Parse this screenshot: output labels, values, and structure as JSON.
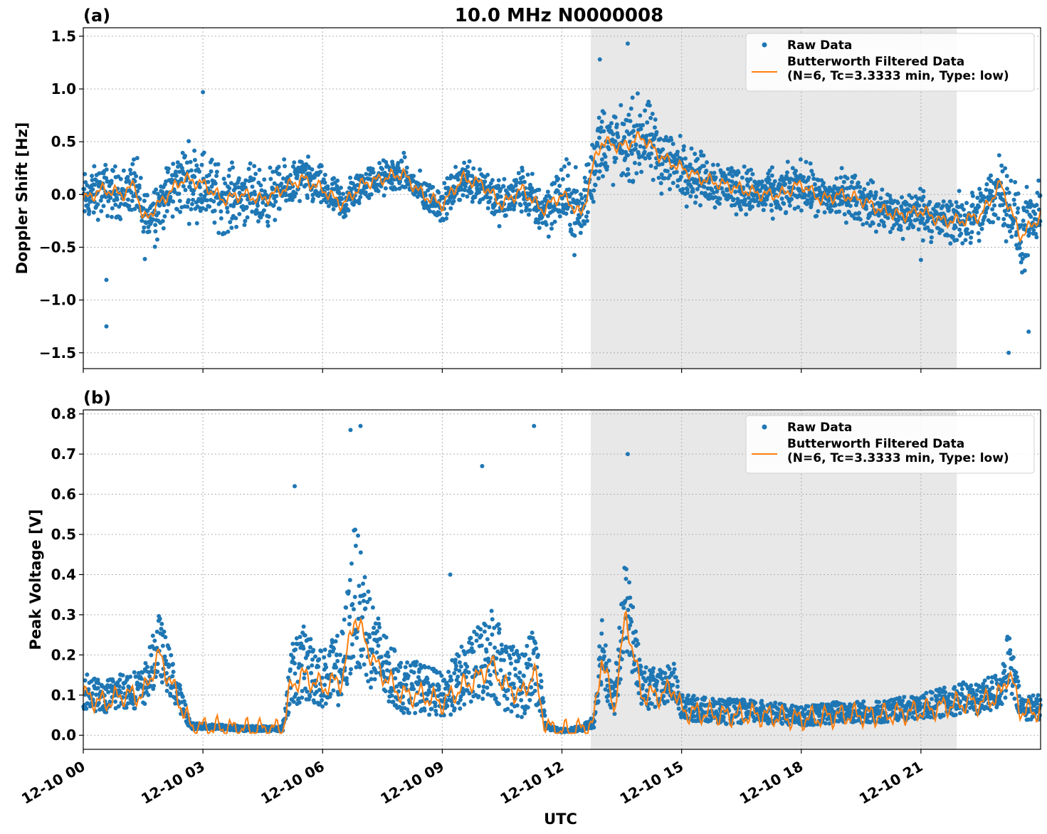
{
  "figure": {
    "title": "10.0 MHz N0000008",
    "xlabel": "UTC"
  },
  "chart_data": [
    {
      "type": "scatter",
      "panel_label": "(a)",
      "title": "10.0 MHz N0000008",
      "xlabel": "",
      "ylabel": "Doppler Shift [Hz]",
      "xlim_hours": [
        0,
        24
      ],
      "ylim": [
        -1.65,
        1.58
      ],
      "yticks": [
        -1.5,
        -1.0,
        -0.5,
        0.0,
        0.5,
        1.0,
        1.5
      ],
      "ytick_labels": [
        "−1.5",
        "−1.0",
        "−0.5",
        "0.0",
        "0.5",
        "1.0",
        "1.5"
      ],
      "grid": true,
      "legend_position": "top-right",
      "shaded_region_hours": [
        12.72,
        21.9
      ],
      "series": [
        {
          "name": "Raw Data",
          "kind": "scatter",
          "color": "#1f77b4",
          "x_hours": [
            0,
            0.5,
            1,
            1.3,
            1.5,
            2,
            2.5,
            3,
            3.5,
            4,
            4.5,
            5,
            5.5,
            6,
            6.5,
            7,
            7.5,
            8,
            8.5,
            9,
            9.5,
            10,
            10.5,
            11,
            11.5,
            12,
            12.5,
            12.8,
            13,
            13.5,
            14,
            14.5,
            15,
            15.5,
            16,
            16.5,
            17,
            17.5,
            18,
            18.5,
            19,
            19.5,
            20,
            20.5,
            21,
            21.5,
            22,
            22.5,
            23,
            23.5,
            24
          ],
          "values": [
            -0.05,
            0.05,
            0.0,
            0.1,
            -0.25,
            -0.05,
            0.15,
            0.1,
            -0.05,
            0.0,
            -0.05,
            0.05,
            0.15,
            0.05,
            -0.1,
            0.1,
            0.15,
            0.2,
            0.0,
            -0.1,
            0.15,
            0.1,
            -0.1,
            0.05,
            -0.15,
            0.0,
            -0.2,
            0.3,
            0.5,
            0.45,
            0.55,
            0.35,
            0.25,
            0.15,
            0.1,
            0.05,
            0.0,
            0.0,
            0.1,
            -0.05,
            0.0,
            -0.05,
            -0.15,
            -0.2,
            -0.15,
            -0.25,
            -0.25,
            -0.2,
            0.1,
            -0.4,
            -0.2
          ],
          "spread": [
            0.22,
            0.22,
            0.22,
            0.25,
            0.3,
            0.25,
            0.3,
            0.3,
            0.28,
            0.25,
            0.25,
            0.2,
            0.2,
            0.18,
            0.18,
            0.15,
            0.15,
            0.15,
            0.15,
            0.15,
            0.18,
            0.2,
            0.2,
            0.2,
            0.22,
            0.28,
            0.35,
            0.35,
            0.35,
            0.3,
            0.35,
            0.3,
            0.25,
            0.22,
            0.22,
            0.2,
            0.2,
            0.2,
            0.2,
            0.2,
            0.2,
            0.2,
            0.2,
            0.2,
            0.2,
            0.2,
            0.22,
            0.25,
            0.3,
            0.35,
            0.25
          ],
          "outliers": [
            [
              0.58,
              -0.81
            ],
            [
              0.58,
              -1.25
            ],
            [
              3.0,
              0.97
            ],
            [
              12.95,
              1.28
            ],
            [
              13.65,
              1.43
            ],
            [
              23.2,
              -1.5
            ],
            [
              23.7,
              -1.3
            ],
            [
              21.0,
              -0.62
            ]
          ]
        },
        {
          "name": "Butterworth Filtered Data\n(N=6, Tc=3.3333 min, Type: low)",
          "kind": "line",
          "color": "#ff7f0e",
          "x_hours": [
            0,
            0.5,
            1,
            1.3,
            1.5,
            2,
            2.5,
            3,
            3.5,
            4,
            4.5,
            5,
            5.5,
            6,
            6.5,
            7,
            7.5,
            8,
            8.5,
            9,
            9.5,
            10,
            10.5,
            11,
            11.5,
            12,
            12.5,
            12.8,
            13,
            13.5,
            14,
            14.5,
            15,
            15.5,
            16,
            16.5,
            17,
            17.5,
            18,
            18.5,
            19,
            19.5,
            20,
            20.5,
            21,
            21.5,
            22,
            22.5,
            23,
            23.5,
            24
          ],
          "values": [
            -0.05,
            0.05,
            0.0,
            0.1,
            -0.25,
            -0.05,
            0.15,
            0.1,
            -0.05,
            0.0,
            -0.05,
            0.05,
            0.15,
            0.05,
            -0.1,
            0.1,
            0.15,
            0.2,
            0.0,
            -0.1,
            0.15,
            0.1,
            -0.1,
            0.05,
            -0.15,
            0.0,
            -0.2,
            0.3,
            0.5,
            0.45,
            0.55,
            0.35,
            0.25,
            0.15,
            0.1,
            0.05,
            0.0,
            0.0,
            0.1,
            -0.05,
            0.0,
            -0.05,
            -0.15,
            -0.2,
            -0.15,
            -0.25,
            -0.25,
            -0.2,
            0.1,
            -0.4,
            -0.2
          ]
        }
      ]
    },
    {
      "type": "scatter",
      "panel_label": "(b)",
      "xlabel": "UTC",
      "ylabel": "Peak Voltage [V]",
      "xlim_hours": [
        0,
        24
      ],
      "ylim": [
        -0.035,
        0.81
      ],
      "yticks": [
        0.0,
        0.1,
        0.2,
        0.3,
        0.4,
        0.5,
        0.6,
        0.7,
        0.8
      ],
      "ytick_labels": [
        "0.0",
        "0.1",
        "0.2",
        "0.3",
        "0.4",
        "0.5",
        "0.6",
        "0.7",
        "0.8"
      ],
      "xticks_hours": [
        0,
        3,
        6,
        9,
        12,
        15,
        18,
        21
      ],
      "xtick_labels": [
        "12-10 00",
        "12-10 03",
        "12-10 06",
        "12-10 09",
        "12-10 12",
        "12-10 15",
        "12-10 18",
        "12-10 21"
      ],
      "grid": true,
      "legend_position": "top-right",
      "shaded_region_hours": [
        12.72,
        21.9
      ],
      "series": [
        {
          "name": "Raw Data",
          "kind": "scatter",
          "color": "#1f77b4",
          "x_hours": [
            0,
            0.5,
            1,
            1.5,
            1.9,
            2.2,
            2.7,
            3,
            4,
            5,
            5.2,
            5.5,
            6,
            6.5,
            6.8,
            7,
            7.3,
            7.6,
            8,
            8.5,
            9,
            9.5,
            10,
            10.2,
            10.6,
            11,
            11.3,
            11.6,
            12,
            12.5,
            12.8,
            13,
            13.3,
            13.6,
            14,
            14.5,
            14.8,
            15,
            16,
            17,
            18,
            19,
            20,
            21,
            21.5,
            22,
            22.5,
            23,
            23.2,
            23.5,
            24
          ],
          "values": [
            0.1,
            0.08,
            0.1,
            0.1,
            0.2,
            0.13,
            0.02,
            0.02,
            0.015,
            0.015,
            0.12,
            0.15,
            0.12,
            0.14,
            0.3,
            0.25,
            0.18,
            0.14,
            0.1,
            0.1,
            0.08,
            0.12,
            0.15,
            0.18,
            0.12,
            0.1,
            0.16,
            0.02,
            0.01,
            0.015,
            0.03,
            0.2,
            0.06,
            0.3,
            0.1,
            0.1,
            0.12,
            0.06,
            0.05,
            0.05,
            0.04,
            0.05,
            0.05,
            0.06,
            0.07,
            0.08,
            0.08,
            0.1,
            0.16,
            0.06,
            0.06
          ],
          "spread": [
            0.06,
            0.05,
            0.06,
            0.06,
            0.1,
            0.07,
            0.01,
            0.01,
            0.008,
            0.008,
            0.1,
            0.12,
            0.09,
            0.12,
            0.22,
            0.2,
            0.14,
            0.1,
            0.08,
            0.08,
            0.07,
            0.1,
            0.13,
            0.15,
            0.12,
            0.1,
            0.14,
            0.01,
            0.005,
            0.008,
            0.02,
            0.12,
            0.05,
            0.15,
            0.07,
            0.06,
            0.06,
            0.04,
            0.04,
            0.035,
            0.03,
            0.035,
            0.035,
            0.04,
            0.045,
            0.05,
            0.05,
            0.06,
            0.1,
            0.04,
            0.04
          ],
          "outliers": [
            [
              5.3,
              0.62
            ],
            [
              6.7,
              0.76
            ],
            [
              6.95,
              0.77
            ],
            [
              10.0,
              0.67
            ],
            [
              11.3,
              0.77
            ],
            [
              13.65,
              0.7
            ],
            [
              9.2,
              0.4
            ]
          ]
        },
        {
          "name": "Butterworth Filtered Data\n(N=6, Tc=3.3333 min, Type: low)",
          "kind": "line",
          "color": "#ff7f0e",
          "x_hours": [
            0,
            0.5,
            1,
            1.5,
            1.9,
            2.2,
            2.7,
            3,
            4,
            5,
            5.2,
            5.5,
            6,
            6.5,
            6.8,
            7,
            7.3,
            7.6,
            8,
            8.5,
            9,
            9.5,
            10,
            10.2,
            10.6,
            11,
            11.3,
            11.6,
            12,
            12.5,
            12.8,
            13,
            13.3,
            13.6,
            14,
            14.5,
            14.8,
            15,
            16,
            17,
            18,
            19,
            20,
            21,
            21.5,
            22,
            22.5,
            23,
            23.2,
            23.5,
            24
          ],
          "values": [
            0.1,
            0.08,
            0.1,
            0.1,
            0.2,
            0.13,
            0.02,
            0.02,
            0.015,
            0.015,
            0.12,
            0.15,
            0.12,
            0.14,
            0.3,
            0.25,
            0.18,
            0.14,
            0.1,
            0.1,
            0.08,
            0.12,
            0.15,
            0.18,
            0.12,
            0.1,
            0.16,
            0.02,
            0.01,
            0.015,
            0.03,
            0.2,
            0.06,
            0.3,
            0.1,
            0.1,
            0.12,
            0.06,
            0.05,
            0.05,
            0.04,
            0.05,
            0.05,
            0.06,
            0.07,
            0.08,
            0.08,
            0.1,
            0.16,
            0.06,
            0.06
          ]
        }
      ]
    }
  ]
}
